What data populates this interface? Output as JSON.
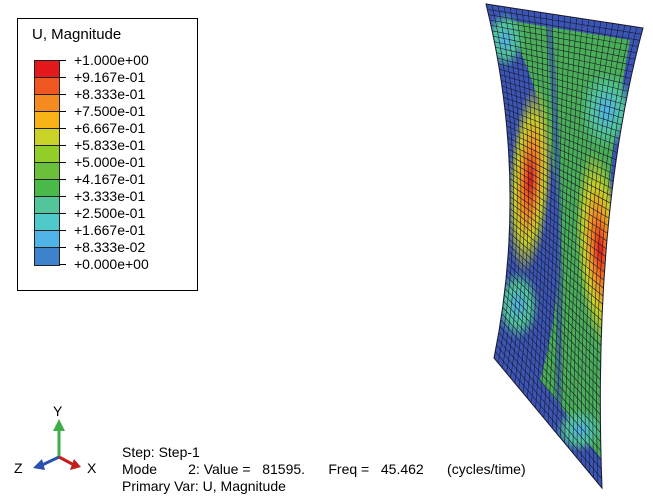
{
  "legend": {
    "title": "U, Magnitude",
    "colors": [
      "#e4191b",
      "#ef5722",
      "#f58b20",
      "#f6b217",
      "#c9d226",
      "#93cd2a",
      "#6bbf3a",
      "#4bb84a",
      "#52c69a",
      "#4fc9c9",
      "#4fb3e8",
      "#3f83cc",
      "#3a55b3"
    ],
    "labels": [
      "+1.000e+00",
      "+9.167e-01",
      "+8.333e-01",
      "+7.500e-01",
      "+6.667e-01",
      "+5.833e-01",
      "+5.000e-01",
      "+4.167e-01",
      "+3.333e-01",
      "+2.500e-01",
      "+1.667e-01",
      "+8.333e-02",
      "+0.000e+00"
    ]
  },
  "triad": {
    "y_label": "Y",
    "z_label": "Z",
    "x_label": "X",
    "y_color": "#3fae49",
    "z_color": "#2b50b0",
    "x_color": "#c21e1e"
  },
  "info": {
    "step": "Step: Step-1",
    "mode_line": "Mode        2: Value =   81595.      Freq =   45.462      (cycles/time)",
    "primary_var": "Primary Var: U, Magnitude"
  },
  "model": {
    "mesh_color": "#1a1a2e"
  }
}
